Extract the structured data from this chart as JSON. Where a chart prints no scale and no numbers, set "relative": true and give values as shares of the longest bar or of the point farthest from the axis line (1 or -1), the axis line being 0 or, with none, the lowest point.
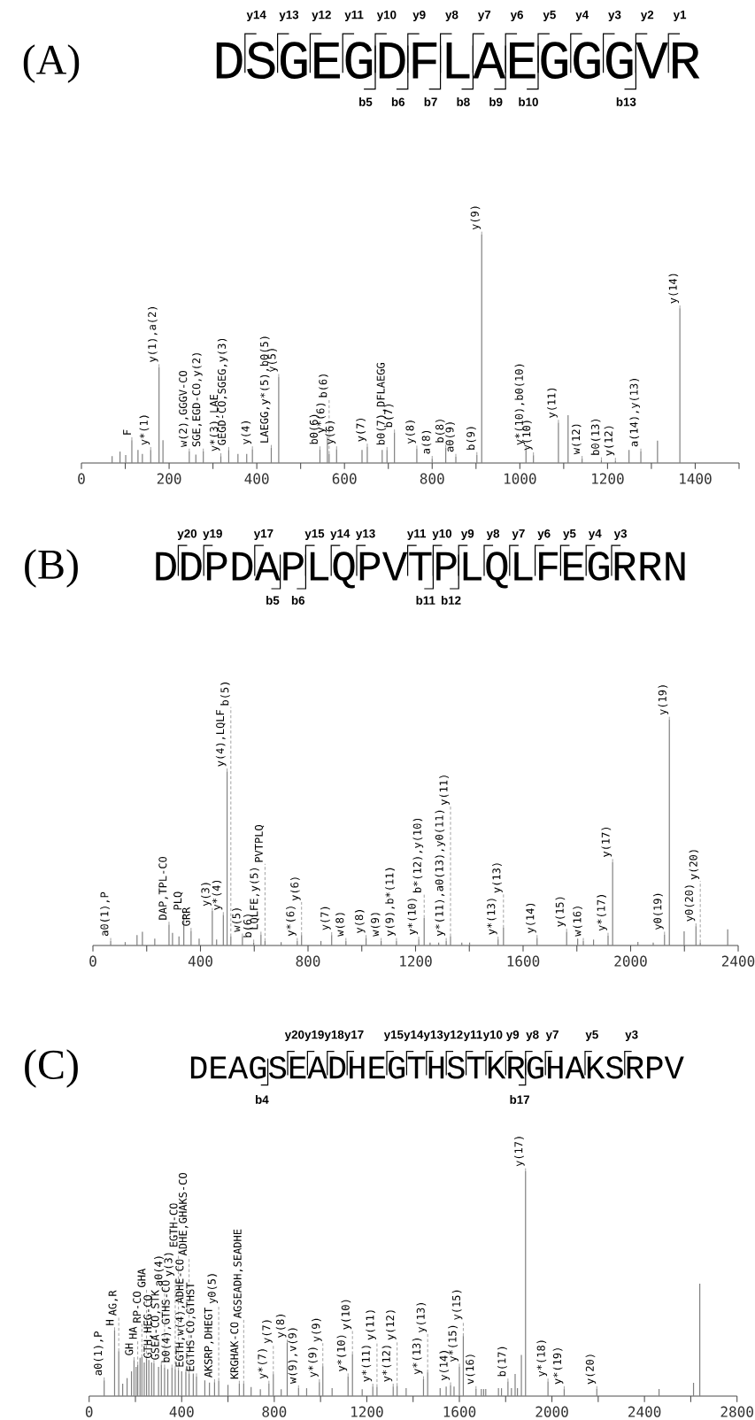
{
  "chart_data": [
    {
      "type": "bar",
      "title": "(A)",
      "subtitle": "DSGEGDFLAEGGGVR",
      "relative": true,
      "xlim": [
        0,
        1500
      ],
      "xticks": [
        {
          "value": 0,
          "label": "0"
        },
        {
          "value": 100,
          "label": null
        },
        {
          "value": 200,
          "label": "200"
        },
        {
          "value": 300,
          "label": null
        },
        {
          "value": 400,
          "label": "400"
        },
        {
          "value": 500,
          "label": null
        },
        {
          "value": 600,
          "label": "600"
        },
        {
          "value": 700,
          "label": null
        },
        {
          "value": 800,
          "label": "800"
        },
        {
          "value": 900,
          "label": null
        },
        {
          "value": 1000,
          "label": "1000"
        },
        {
          "value": 1100,
          "label": null
        },
        {
          "value": 1200,
          "label": "1200"
        },
        {
          "value": 1300,
          "label": null
        },
        {
          "value": 1400,
          "label": "1400"
        },
        {
          "value": 1500,
          "label": null
        }
      ],
      "x": [
        70,
        88,
        101,
        115,
        129,
        139,
        158,
        177,
        186,
        246,
        261,
        278,
        318,
        336,
        357,
        377,
        390,
        433,
        450,
        544,
        561,
        565,
        582,
        640,
        652,
        686,
        697,
        714,
        765,
        800,
        831,
        854,
        902,
        913,
        1014,
        1031,
        1088,
        1110,
        1142,
        1186,
        1218,
        1249,
        1276,
        1314,
        1365
      ],
      "series": [
        {
          "color": "#808080",
          "values": [
            0.03,
            0.05,
            0.035,
            0.1,
            0.057,
            0.04,
            0.057,
            0.42,
            0.1,
            0.05,
            0.037,
            0.05,
            0.03,
            0.057,
            0.04,
            0.04,
            0.06,
            0.066,
            0.377,
            0.06,
            0.11,
            0.04,
            0.06,
            0.057,
            0.072,
            0.057,
            0.057,
            0.134,
            0.063,
            0.018,
            0.067,
            0.027,
            0.035,
            1.0,
            0.057,
            0.034,
            0.176,
            0.209,
            0.018,
            0.012,
            0.01,
            0.057,
            0.05,
            0.098,
            0.677
          ]
        }
      ],
      "annotations": [
        "y14",
        "y13",
        "y12",
        "y11",
        "y10",
        "y9",
        "y8",
        "y7",
        "y6",
        "y5",
        "y4",
        "y3",
        "y2",
        "y1",
        "b5",
        "b6",
        "b7",
        "b8",
        "b9",
        "b10",
        "b13",
        {
          "text": "F",
          "x": 115,
          "y": 0.1
        },
        {
          "text": "y*(1)",
          "x": 158,
          "y": 0.057
        },
        {
          "text": "y(1),a(2)",
          "x": 177,
          "y": 0.42
        },
        {
          "text": "w(2),GGGV-CO",
          "x": 246,
          "y": 0.05
        },
        {
          "text": "SGE,EGD-CO,y(2)",
          "x": 278,
          "y": 0.05
        },
        {
          "text": "y*(3),LAE",
          "x": 318,
          "y": 0.03
        },
        {
          "text": "GEGD-CO,SGEG,y(3)",
          "x": 336,
          "y": 0.057
        },
        {
          "text": "y(4)",
          "x": 390,
          "y": 0.06
        },
        {
          "text": "LAEGG,y*(5),b0(5)",
          "x": 433,
          "y": 0.066
        },
        {
          "text": "y(5)",
          "x": 450,
          "y": 0.377
        },
        {
          "text": "b0(6)",
          "x": 544,
          "y": 0.06
        },
        {
          "text": "y*(6)",
          "x": 561,
          "y": 0.11
        },
        {
          "text": "b(6)",
          "x": 565,
          "y": 0.04
        },
        {
          "text": "y(6)",
          "x": 582,
          "y": 0.06
        },
        {
          "text": "y(7)",
          "x": 652,
          "y": 0.072
        },
        {
          "text": "b0(7),DFLAEGG",
          "x": 697,
          "y": 0.057
        },
        {
          "text": "b(7)",
          "x": 714,
          "y": 0.134
        },
        {
          "text": "y(8)",
          "x": 765,
          "y": 0.063
        },
        {
          "text": "a(8)",
          "x": 800,
          "y": 0.018
        },
        {
          "text": "b(8)",
          "x": 831,
          "y": 0.067
        },
        {
          "text": "a0(9)",
          "x": 854,
          "y": 0.027
        },
        {
          "text": "b(9)",
          "x": 902,
          "y": 0.035
        },
        {
          "text": "y(9)",
          "x": 913,
          "y": 1.0
        },
        {
          "text": "y*(10),b0(10)",
          "x": 1014,
          "y": 0.057
        },
        {
          "text": "y(10)",
          "x": 1031,
          "y": 0.034
        },
        {
          "text": "y(11)",
          "x": 1088,
          "y": 0.176
        },
        {
          "text": "w(12)",
          "x": 1142,
          "y": 0.018
        },
        {
          "text": "b0(13)",
          "x": 1186,
          "y": 0.012
        },
        {
          "text": "y(12)",
          "x": 1218,
          "y": 0.01
        },
        {
          "text": "a(14),y(13)",
          "x": 1276,
          "y": 0.05
        },
        {
          "text": "y(14)",
          "x": 1365,
          "y": 0.677
        }
      ]
    },
    {
      "type": "bar",
      "title": "(B)",
      "subtitle": "DDPDAPLQPVTPLQLFEGRRN",
      "relative": true,
      "xlim": [
        0,
        2400
      ],
      "xticks": [
        {
          "value": 0,
          "label": "0"
        },
        {
          "value": 200,
          "label": null
        },
        {
          "value": 400,
          "label": "400"
        },
        {
          "value": 600,
          "label": null
        },
        {
          "value": 800,
          "label": "800"
        },
        {
          "value": 1000,
          "label": null
        },
        {
          "value": 1200,
          "label": "1200"
        },
        {
          "value": 1400,
          "label": null
        },
        {
          "value": 1600,
          "label": "1600"
        },
        {
          "value": 1800,
          "label": null
        },
        {
          "value": 2000,
          "label": "2000"
        },
        {
          "value": 2200,
          "label": null
        },
        {
          "value": 2400,
          "label": "2400"
        }
      ],
      "x": [
        66,
        120,
        164,
        184,
        230,
        283,
        296,
        320,
        338,
        365,
        395,
        444,
        460,
        485,
        499,
        513,
        556,
        598,
        625,
        640,
        700,
        760,
        776,
        848,
        888,
        941,
        1016,
        1072,
        1129,
        1212,
        1232,
        1254,
        1286,
        1314,
        1330,
        1372,
        1401,
        1507,
        1527,
        1652,
        1762,
        1803,
        1824,
        1862,
        1916,
        1933,
        2027,
        2084,
        2126,
        2144,
        2199,
        2243,
        2259,
        2361
      ],
      "series": [
        {
          "color": "#808080",
          "values": [
            0.02,
            0.015,
            0.046,
            0.061,
            0.03,
            0.092,
            0.056,
            0.04,
            0.135,
            0.065,
            0.03,
            0.153,
            0.026,
            0.135,
            0.771,
            0.04,
            0.04,
            0.013,
            0.048,
            0.02,
            0.015,
            0.02,
            0.046,
            0.02,
            0.046,
            0.02,
            0.033,
            0.02,
            0.02,
            0.026,
            0.122,
            0.013,
            0.013,
            0.02,
            0.04,
            0.013,
            0.013,
            0.026,
            0.078,
            0.033,
            0.061,
            0.03,
            0.02,
            0.026,
            0.043,
            0.37,
            0.016,
            0.013,
            0.048,
            1.0,
            0.063,
            0.085,
            0.013,
            0.072
          ]
        }
      ],
      "annotations": [
        "y20",
        "y19",
        "y17",
        "y15",
        "y14",
        "y13",
        "y11",
        "y10",
        "y9",
        "y8",
        "y7",
        "y6",
        "y5",
        "y4",
        "y3",
        "b5",
        "b6",
        "b11",
        "b12",
        {
          "text": "a0(1),P",
          "x": 66,
          "y": 0.02
        },
        {
          "text": "DAP,TPL-CO",
          "x": 283,
          "y": 0.092
        },
        {
          "text": "PLQ",
          "x": 338,
          "y": 0.135
        },
        {
          "text": "GRR",
          "x": 365,
          "y": 0.065
        },
        {
          "text": "y(3)",
          "x": 444,
          "y": 0.153
        },
        {
          "text": "y*(4)",
          "x": 485,
          "y": 0.135
        },
        {
          "text": "y(4),LQLF",
          "x": 499,
          "y": 0.771
        },
        {
          "text": "b(5)",
          "x": 513,
          "y": 0.04
        },
        {
          "text": "w(5)",
          "x": 556,
          "y": 0.04
        },
        {
          "text": "b(6)",
          "x": 598,
          "y": 0.013
        },
        {
          "text": "LQLFE,y(5)",
          "x": 625,
          "y": 0.048
        },
        {
          "text": "PVTPLQ",
          "x": 640,
          "y": 0.02
        },
        {
          "text": "y*(6)",
          "x": 760,
          "y": 0.02
        },
        {
          "text": "y(6)",
          "x": 776,
          "y": 0.046
        },
        {
          "text": "y(7)",
          "x": 888,
          "y": 0.046
        },
        {
          "text": "w(8)",
          "x": 941,
          "y": 0.02
        },
        {
          "text": "y(8)",
          "x": 1016,
          "y": 0.033
        },
        {
          "text": "w(9)",
          "x": 1072,
          "y": 0.02
        },
        {
          "text": "y(9),b*(11)",
          "x": 1129,
          "y": 0.02
        },
        {
          "text": "y*(10)",
          "x": 1212,
          "y": 0.026
        },
        {
          "text": "b*(12),y(10)",
          "x": 1232,
          "y": 0.122
        },
        {
          "text": "y*(11),a0(13),y0(11)",
          "x": 1314,
          "y": 0.02
        },
        {
          "text": "y(11)",
          "x": 1330,
          "y": 0.04
        },
        {
          "text": "y*(13)",
          "x": 1507,
          "y": 0.026
        },
        {
          "text": "y(13)",
          "x": 1527,
          "y": 0.078
        },
        {
          "text": "y(14)",
          "x": 1652,
          "y": 0.033
        },
        {
          "text": "y(15)",
          "x": 1762,
          "y": 0.061
        },
        {
          "text": "w(16)",
          "x": 1824,
          "y": 0.02
        },
        {
          "text": "y*(17)",
          "x": 1916,
          "y": 0.043
        },
        {
          "text": "y(17)",
          "x": 1933,
          "y": 0.37
        },
        {
          "text": "y0(19)",
          "x": 2126,
          "y": 0.048
        },
        {
          "text": "y(19)",
          "x": 2144,
          "y": 1.0
        },
        {
          "text": "y0(20)",
          "x": 2243,
          "y": 0.085
        },
        {
          "text": "y(20)",
          "x": 2259,
          "y": 0.013
        }
      ]
    },
    {
      "type": "bar",
      "title": "(C)",
      "subtitle": "DEAGSEADHEGTHSTKRGHAKSRPV",
      "relative": true,
      "xlim": [
        0,
        2800
      ],
      "xticks": [
        {
          "value": 0,
          "label": "0"
        },
        {
          "value": 200,
          "label": null
        },
        {
          "value": 400,
          "label": "400"
        },
        {
          "value": 600,
          "label": null
        },
        {
          "value": 800,
          "label": "800"
        },
        {
          "value": 1000,
          "label": null
        },
        {
          "value": 1200,
          "label": "1200"
        },
        {
          "value": 1400,
          "label": null
        },
        {
          "value": 1600,
          "label": "1600"
        },
        {
          "value": 1800,
          "label": null
        },
        {
          "value": 2000,
          "label": "2000"
        },
        {
          "value": 2200,
          "label": null
        },
        {
          "value": 2400,
          "label": "2400"
        },
        {
          "value": 2600,
          "label": null
        },
        {
          "value": 2800,
          "label": "2800"
        }
      ],
      "x": [
        65,
        110,
        128,
        145,
        164,
        183,
        194,
        203,
        210,
        220,
        228,
        238,
        248,
        258,
        270,
        280,
        300,
        312,
        326,
        340,
        358,
        372,
        386,
        400,
        418,
        432,
        450,
        464,
        500,
        520,
        542,
        560,
        600,
        649,
        668,
        700,
        740,
        777,
        796,
        830,
        856,
        905,
        940,
        995,
        1010,
        1050,
        1119,
        1138,
        1180,
        1226,
        1244,
        1314,
        1331,
        1370,
        1445,
        1463,
        1517,
        1543,
        1562,
        1577,
        1600,
        1617,
        1672,
        1695,
        1705,
        1714,
        1769,
        1782,
        1810,
        1825,
        1841,
        1851,
        1868,
        1886,
        1983,
        2053,
        2194,
        2463,
        2612,
        2639
      ],
      "series": [
        {
          "color": "#808080",
          "values": [
            0.07,
            0.293,
            0.2,
            0.055,
            0.08,
            0.11,
            0.16,
            0.13,
            0.14,
            0.17,
            0.173,
            0.15,
            0.166,
            0.16,
            0.15,
            0.147,
            0.13,
            0.14,
            0.127,
            0.12,
            0.127,
            0.12,
            0.114,
            0.11,
            0.107,
            0.1,
            0.1,
            0.088,
            0.07,
            0.06,
            0.062,
            0.068,
            0.05,
            0.055,
            0.055,
            0.04,
            0.03,
            0.055,
            0.097,
            0.03,
            0.238,
            0.035,
            0.035,
            0.062,
            0.133,
            0.035,
            0.088,
            0.186,
            0.03,
            0.042,
            0.04,
            0.042,
            0.045,
            0.035,
            0.075,
            0.105,
            0.035,
            0.042,
            0.048,
            0.042,
            0.131,
            0.267,
            0.031,
            0.031,
            0.031,
            0.031,
            0.035,
            0.035,
            0.065,
            0.035,
            0.098,
            0.035,
            0.183,
            1.0,
            0.065,
            0.031,
            0.031,
            0.031,
            0.059,
            0.5
          ]
        }
      ],
      "annotations": [
        "y20",
        "y19",
        "y18",
        "y17",
        "y15",
        "y14",
        "y13",
        "y12",
        "y11",
        "y10",
        "y9",
        "y8",
        "y7",
        "y5",
        "y3",
        "b4",
        "b17",
        {
          "text": "a0(1),P",
          "x": 65,
          "y": 0.07
        },
        {
          "text": "H",
          "x": 110,
          "y": 0.293
        },
        {
          "text": "AG,R",
          "x": 128,
          "y": 0.2
        },
        {
          "text": "GH",
          "x": 194,
          "y": 0.16
        },
        {
          "text": "HA",
          "x": 210,
          "y": 0.14
        },
        {
          "text": "RP-CO",
          "x": 228,
          "y": 0.173
        },
        {
          "text": "GHA",
          "x": 248,
          "y": 0.166
        },
        {
          "text": "GTH,HEG-CO",
          "x": 280,
          "y": 0.147
        },
        {
          "text": "GSEA-CO,STK",
          "x": 312,
          "y": 0.14
        },
        {
          "text": "a0(4)",
          "x": 326,
          "y": 0.127
        },
        {
          "text": "b0(4),GTHS-CO",
          "x": 358,
          "y": 0.127
        },
        {
          "text": "y(3)",
          "x": 372,
          "y": 0.12
        },
        {
          "text": "EGTH-CO",
          "x": 386,
          "y": 0.114
        },
        {
          "text": "EGTH,w(4),ADHE-CO",
          "x": 418,
          "y": 0.107
        },
        {
          "text": "ADHE,GHAKS-CO",
          "x": 432,
          "y": 0.1
        },
        {
          "text": "EGTHS-CO,GTHST",
          "x": 464,
          "y": 0.088
        },
        {
          "text": "AKSRP,DHEGT",
          "x": 542,
          "y": 0.062
        },
        {
          "text": "y0(5)",
          "x": 560,
          "y": 0.068
        },
        {
          "text": "KRGHAK-CO",
          "x": 649,
          "y": 0.055
        },
        {
          "text": "AGSEADH,SEADHE",
          "x": 668,
          "y": 0.055
        },
        {
          "text": "y*(7)",
          "x": 777,
          "y": 0.055
        },
        {
          "text": "y(7)",
          "x": 796,
          "y": 0.097
        },
        {
          "text": "y(8)",
          "x": 856,
          "y": 0.238
        },
        {
          "text": "w(9),v(9)",
          "x": 905,
          "y": 0.035
        },
        {
          "text": "y*(9)",
          "x": 995,
          "y": 0.062
        },
        {
          "text": "y(9)",
          "x": 1010,
          "y": 0.133
        },
        {
          "text": "y*(10)",
          "x": 1119,
          "y": 0.088
        },
        {
          "text": "y(10)",
          "x": 1138,
          "y": 0.186
        },
        {
          "text": "y*(11)",
          "x": 1226,
          "y": 0.042
        },
        {
          "text": "y(11)",
          "x": 1244,
          "y": 0.04
        },
        {
          "text": "y*(12)",
          "x": 1314,
          "y": 0.042
        },
        {
          "text": "y(12)",
          "x": 1331,
          "y": 0.045
        },
        {
          "text": "y*(13)",
          "x": 1445,
          "y": 0.075
        },
        {
          "text": "y(13)",
          "x": 1463,
          "y": 0.105
        },
        {
          "text": "y(14)",
          "x": 1562,
          "y": 0.048
        },
        {
          "text": "y*(15)",
          "x": 1600,
          "y": 0.131
        },
        {
          "text": "y(15)",
          "x": 1617,
          "y": 0.267
        },
        {
          "text": "v(16)",
          "x": 1672,
          "y": 0.031
        },
        {
          "text": "b(17)",
          "x": 1810,
          "y": 0.065
        },
        {
          "text": "y(17)",
          "x": 1886,
          "y": 1.0
        },
        {
          "text": "y*(18)",
          "x": 1983,
          "y": 0.065
        },
        {
          "text": "y*(19)",
          "x": 2053,
          "y": 0.031
        },
        {
          "text": "y(20)",
          "x": 2194,
          "y": 0.031
        }
      ]
    }
  ]
}
